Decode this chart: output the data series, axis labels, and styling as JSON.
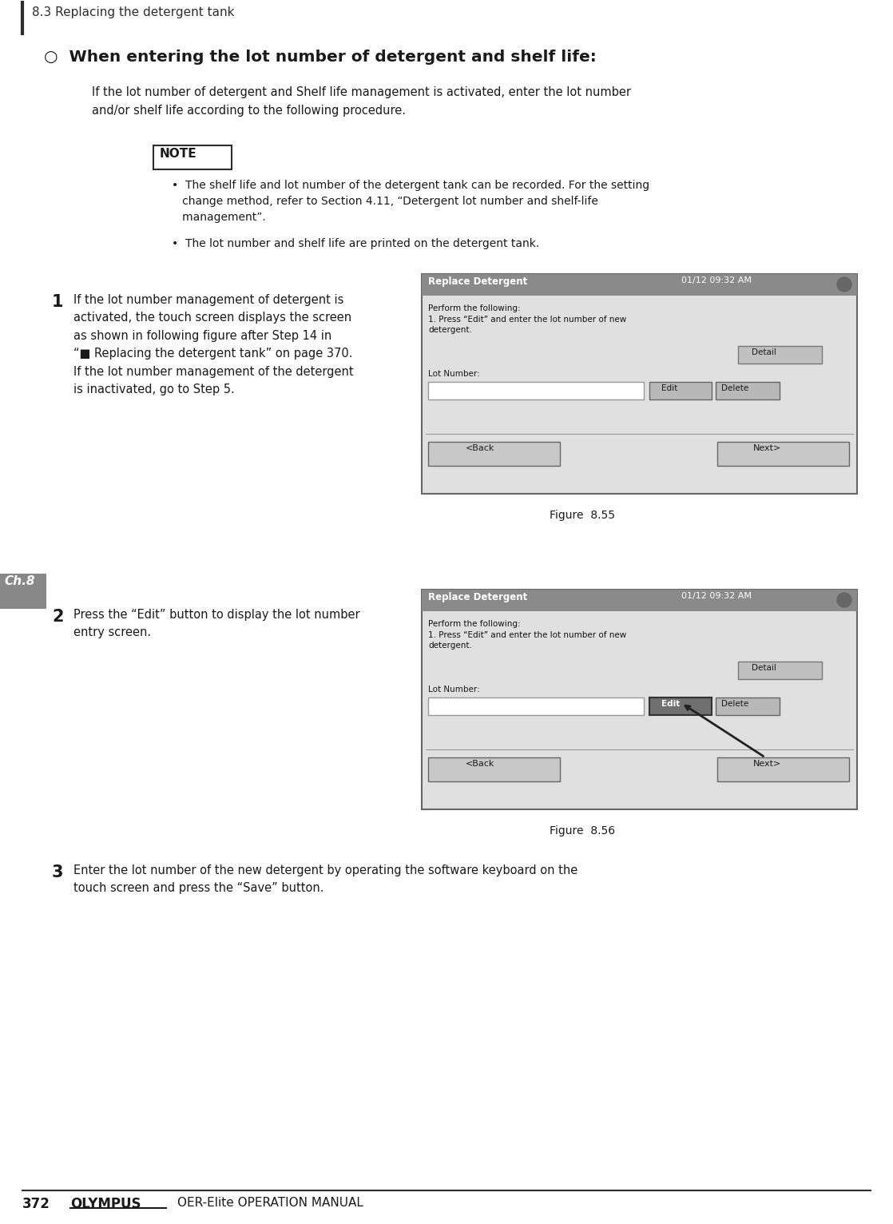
{
  "page_bg": "#ffffff",
  "header_text": "8.3 Replacing the detergent tank",
  "section_title": "○  When entering the lot number of detergent and shelf life:",
  "intro_text": "If the lot number of detergent and Shelf life management is activated, enter the lot number\nand/or shelf life according to the following procedure.",
  "note_label": "NOTE",
  "note_bullet1": "•  The shelf life and lot number of the detergent tank can be recorded. For the setting\n   change method, refer to Section 4.11, “Detergent lot number and shelf-life\n   management”.",
  "note_bullet2": "•  The lot number and shelf life are printed on the detergent tank.",
  "step1_num": "1",
  "step1_text": "If the lot number management of detergent is\nactivated, the touch screen displays the screen\nas shown in following figure after Step 14 in\n“■ Replacing the detergent tank” on page 370.\nIf the lot number management of the detergent\nis inactivated, go to Step 5.",
  "fig55_label": "Figure  8.55",
  "step2_num": "2",
  "step2_text": "Press the “Edit” button to display the lot number\nentry screen.",
  "fig56_label": "Figure  8.56",
  "step3_num": "3",
  "step3_text": "Enter the lot number of the new detergent by operating the software keyboard on the\ntouch screen and press the “Save” button.",
  "ch8_label": "Ch.8",
  "footer_page": "372",
  "footer_brand": "OLYMPUS",
  "footer_manual": "OER-Elite OPERATION MANUAL",
  "screen_header_text": "Replace Detergent",
  "screen_datetime": "01/12 09:32 AM",
  "screen_body_text": "Perform the following:\n1. Press “Edit” and enter the lot number of new\ndetergent.",
  "screen_lot_label": "Lot Number:",
  "screen_detail_btn": "Detail",
  "screen_edit_btn": "Edit",
  "screen_delete_btn": "Delete",
  "screen_back_btn": "<Back",
  "screen_next_btn": "Next>"
}
